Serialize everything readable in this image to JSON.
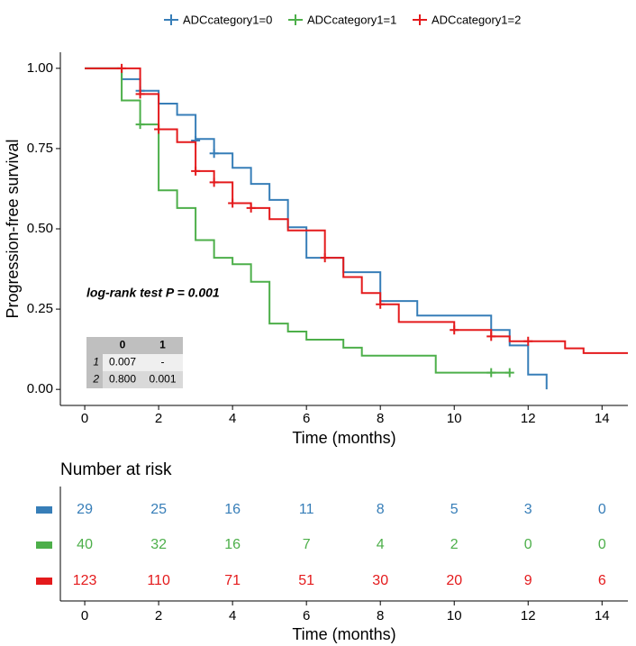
{
  "chart_data": {
    "type": "step",
    "ylabel": "Progression-free survival",
    "xlabel": "Time (months)",
    "xlim": [
      -0.66,
      14.7
    ],
    "ylim": [
      -0.05,
      1.05
    ],
    "xticks": [
      0,
      2,
      4,
      6,
      8,
      10,
      12,
      14
    ],
    "yticks": [
      {
        "value": 0,
        "label": "0.00"
      },
      {
        "value": 0.25,
        "label": "0.25"
      },
      {
        "value": 0.5,
        "label": "0.50"
      },
      {
        "value": 0.75,
        "label": "0.75"
      },
      {
        "value": 1,
        "label": "1.00"
      }
    ],
    "legend_position": "top",
    "annotation": "log-rank test P = 0.001",
    "series": [
      {
        "name": "ADCcategory1=0",
        "color": "#377eb8",
        "x": [
          0,
          1,
          1.5,
          2,
          2.5,
          3,
          3.5,
          4,
          4.5,
          5,
          5.5,
          6,
          7,
          8,
          9,
          11,
          11.5,
          12,
          12.5
        ],
        "values": [
          1,
          0.966,
          0.93,
          0.89,
          0.855,
          0.78,
          0.735,
          0.69,
          0.64,
          0.59,
          0.505,
          0.41,
          0.365,
          0.275,
          0.23,
          0.185,
          0.137,
          0.046,
          0
        ],
        "censored_x": [
          1.5,
          3,
          3.5
        ],
        "censored_values": [
          0.93,
          0.775,
          0.735
        ]
      },
      {
        "name": "ADCcategory1=1",
        "color": "#4daf4a",
        "x": [
          0,
          1,
          1.5,
          2,
          2.5,
          3,
          3.5,
          4,
          4.5,
          5,
          5.5,
          6,
          7,
          7.5,
          9.5,
          11.5
        ],
        "values": [
          1,
          0.9,
          0.825,
          0.62,
          0.565,
          0.465,
          0.41,
          0.39,
          0.335,
          0.205,
          0.18,
          0.155,
          0.13,
          0.105,
          0.052,
          0.052
        ],
        "censored_x": [
          1.5,
          11,
          11.5
        ],
        "censored_values": [
          0.825,
          0.052,
          0.052
        ]
      },
      {
        "name": "ADCcategory1=2",
        "color": "#e41a1c",
        "x": [
          0,
          1.5,
          2,
          2.5,
          3,
          3.5,
          4,
          4.5,
          5,
          5.5,
          6.5,
          7,
          7.5,
          8,
          8.5,
          10,
          11,
          11.5,
          13,
          13.5,
          14.7
        ],
        "values": [
          1,
          0.92,
          0.81,
          0.77,
          0.68,
          0.645,
          0.58,
          0.565,
          0.53,
          0.495,
          0.41,
          0.35,
          0.3,
          0.265,
          0.21,
          0.185,
          0.165,
          0.15,
          0.128,
          0.113,
          0.113
        ],
        "censored_x": [
          1,
          1.5,
          2,
          3,
          3.5,
          4,
          4.5,
          6.5,
          8,
          10,
          11,
          12
        ],
        "censored_values": [
          1,
          0.92,
          0.81,
          0.68,
          0.645,
          0.58,
          0.565,
          0.41,
          0.265,
          0.185,
          0.165,
          0.15
        ]
      }
    ],
    "pvalue_table": {
      "columns": [
        "0",
        "1"
      ],
      "rows": [
        {
          "label": "1",
          "cells": [
            "0.007",
            "-"
          ]
        },
        {
          "label": "2",
          "cells": [
            "0.800",
            "0.001"
          ]
        }
      ]
    },
    "risk_table": {
      "title": "Number at risk",
      "xlabel": "Time (months)",
      "rows": [
        [
          29,
          25,
          16,
          11,
          8,
          5,
          3,
          0
        ],
        [
          40,
          32,
          16,
          7,
          4,
          2,
          0,
          0
        ],
        [
          123,
          110,
          71,
          51,
          30,
          20,
          9,
          6
        ]
      ]
    }
  }
}
